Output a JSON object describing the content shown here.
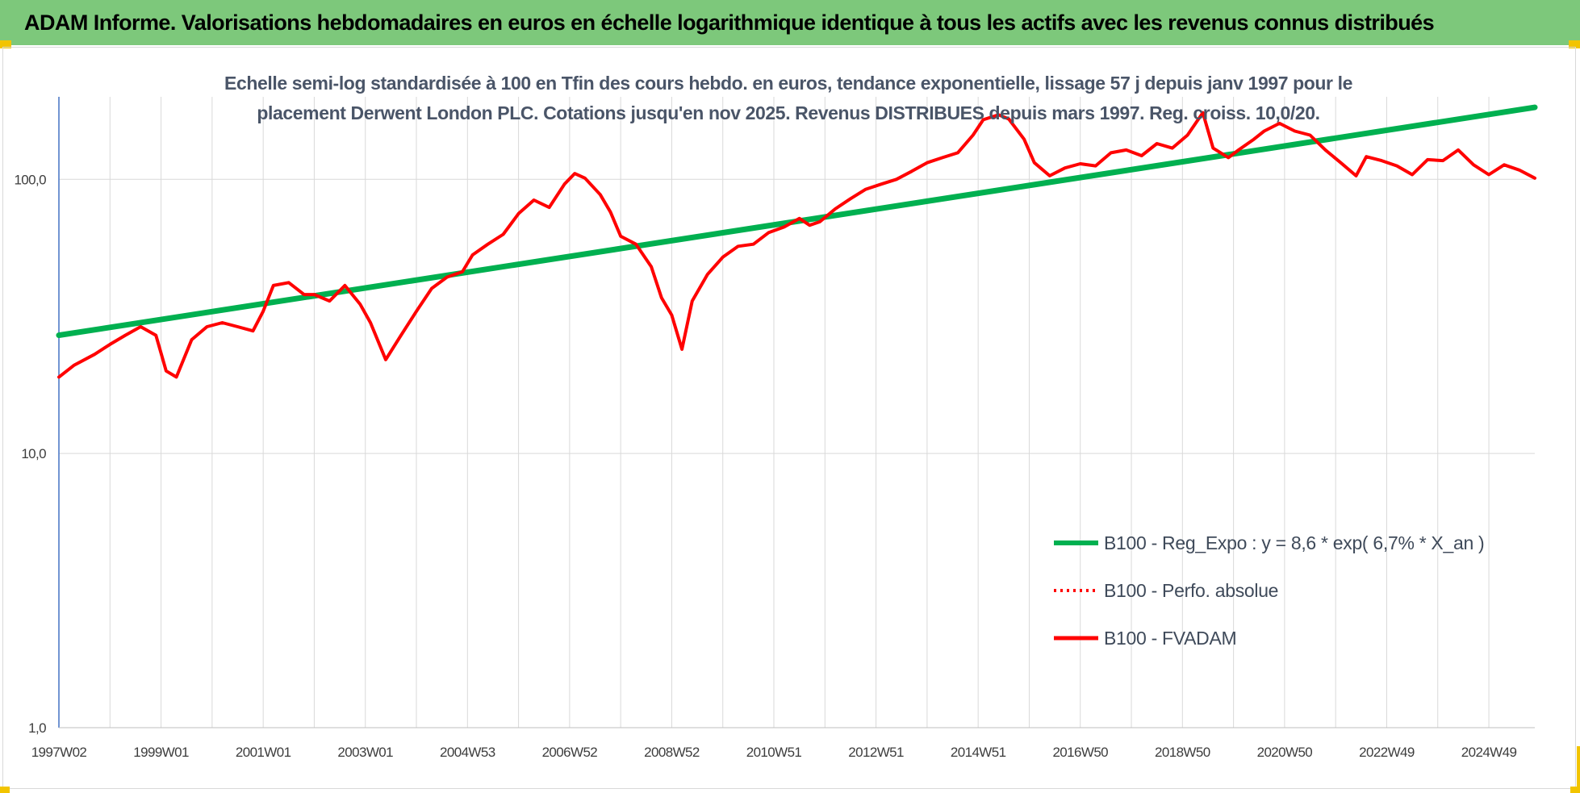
{
  "header": {
    "title": "ADAM Informe. Valorisations hebdomadaires en euros en échelle logarithmique identique à tous les actifs avec les revenus connus distribués"
  },
  "colors": {
    "banner": "#7dc87b",
    "trend": "#00b050",
    "series": "#ff0000",
    "grid": "#d9d9d9",
    "axis": "#4472c4"
  },
  "chart_data": {
    "type": "line",
    "title_lines": [
      "Echelle semi-log standardisée à 100 en Tfin des cours hebdo. en euros, tendance exponentielle, lissage 57 j depuis janv 1997 pour le",
      "placement Derwent London PLC. Cotations jusqu'en nov 2025. Revenus DISTRIBUES depuis mars 1997. Reg. croiss. 10,0/20."
    ],
    "y_scale": "log",
    "ylim": [
      1,
      200
    ],
    "y_ticks": [
      {
        "value": 1,
        "label": "1,0"
      },
      {
        "value": 10,
        "label": "10,0"
      },
      {
        "value": 100,
        "label": "100,0"
      }
    ],
    "xlim": [
      1997.0,
      2025.9
    ],
    "x_ticks": [
      {
        "x": 1997.0,
        "label": "1997W02"
      },
      {
        "x": 1999.0,
        "label": "1999W01"
      },
      {
        "x": 2001.0,
        "label": "2001W01"
      },
      {
        "x": 2003.0,
        "label": "2003W01"
      },
      {
        "x": 2005.0,
        "label": "2004W53"
      },
      {
        "x": 2007.0,
        "label": "2006W52"
      },
      {
        "x": 2009.0,
        "label": "2008W52"
      },
      {
        "x": 2011.0,
        "label": "2010W51"
      },
      {
        "x": 2013.0,
        "label": "2012W51"
      },
      {
        "x": 2015.0,
        "label": "2014W51"
      },
      {
        "x": 2017.0,
        "label": "2016W50"
      },
      {
        "x": 2019.0,
        "label": "2018W50"
      },
      {
        "x": 2021.0,
        "label": "2020W50"
      },
      {
        "x": 2023.0,
        "label": "2022W49"
      },
      {
        "x": 2025.0,
        "label": "2024W49"
      }
    ],
    "grid": true,
    "legend_position": "lower-right",
    "series": [
      {
        "name": "B100 - Reg_Expo : y = 8,6 * exp( 6,7% *  X_an )",
        "style": "solid-thick",
        "color": "#00b050",
        "x": [
          1997.0,
          2025.9
        ],
        "y": [
          27,
          183
        ]
      },
      {
        "name": "B100 - Perfo. absolue",
        "style": "dotted",
        "color": "#ff0000",
        "x": [],
        "y": []
      },
      {
        "name": "B100 - FVADAM",
        "style": "solid",
        "color": "#ff0000",
        "x": [
          1997.0,
          1997.3,
          1997.7,
          1998.0,
          1998.3,
          1998.6,
          1998.9,
          1999.1,
          1999.3,
          1999.6,
          1999.9,
          2000.2,
          2000.5,
          2000.8,
          2001.0,
          2001.2,
          2001.5,
          2001.8,
          2002.0,
          2002.3,
          2002.6,
          2002.9,
          2003.1,
          2003.4,
          2003.7,
          2004.0,
          2004.3,
          2004.6,
          2004.9,
          2005.1,
          2005.4,
          2005.7,
          2006.0,
          2006.3,
          2006.6,
          2006.9,
          2007.1,
          2007.3,
          2007.6,
          2007.8,
          2008.0,
          2008.3,
          2008.6,
          2008.8,
          2009.0,
          2009.2,
          2009.4,
          2009.7,
          2010.0,
          2010.3,
          2010.6,
          2010.9,
          2011.2,
          2011.5,
          2011.7,
          2011.9,
          2012.2,
          2012.5,
          2012.8,
          2013.1,
          2013.4,
          2013.7,
          2014.0,
          2014.3,
          2014.6,
          2014.9,
          2015.1,
          2015.4,
          2015.6,
          2015.9,
          2016.1,
          2016.4,
          2016.7,
          2017.0,
          2017.3,
          2017.6,
          2017.9,
          2018.2,
          2018.5,
          2018.8,
          2019.1,
          2019.4,
          2019.6,
          2019.9,
          2020.1,
          2020.4,
          2020.6,
          2020.9,
          2021.2,
          2021.5,
          2021.8,
          2022.1,
          2022.4,
          2022.6,
          2022.9,
          2023.2,
          2023.5,
          2023.8,
          2024.1,
          2024.4,
          2024.7,
          2025.0,
          2025.3,
          2025.6,
          2025.9
        ],
        "y": [
          19,
          21,
          23,
          25,
          27,
          29,
          27,
          20,
          19,
          26,
          29,
          30,
          29,
          28,
          33,
          41,
          42,
          38,
          38,
          36,
          41,
          35,
          30,
          22,
          27,
          33,
          40,
          44,
          46,
          53,
          58,
          63,
          75,
          84,
          79,
          96,
          105,
          101,
          88,
          76,
          62,
          58,
          48,
          37,
          32,
          24,
          36,
          45,
          52,
          57,
          58,
          64,
          67,
          72,
          68,
          70,
          78,
          85,
          92,
          96,
          100,
          107,
          115,
          120,
          125,
          145,
          165,
          172,
          166,
          140,
          115,
          103,
          110,
          114,
          112,
          125,
          128,
          122,
          135,
          130,
          145,
          175,
          130,
          120,
          128,
          140,
          150,
          160,
          150,
          145,
          128,
          115,
          103,
          121,
          117,
          112,
          104,
          118,
          117,
          128,
          113,
          104,
          113,
          108,
          101
        ]
      }
    ]
  }
}
